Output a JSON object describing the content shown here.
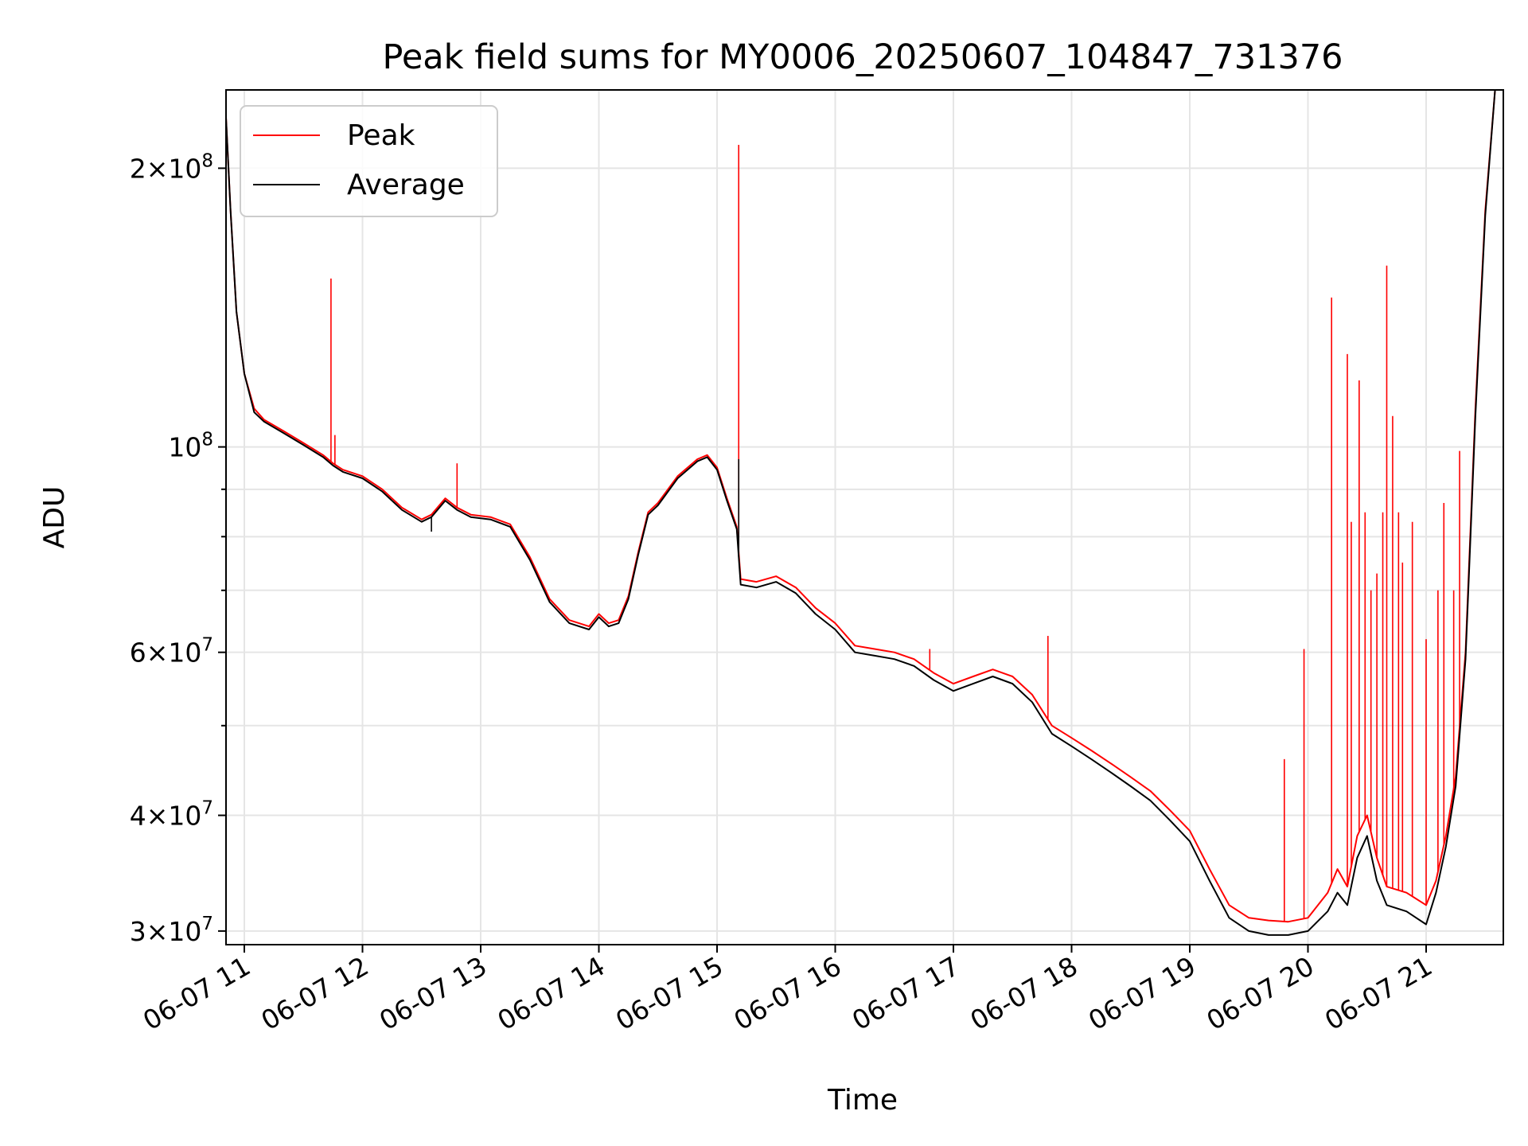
{
  "chart_data": {
    "type": "line",
    "title": "Peak field sums for MY0006_20250607_104847_731376",
    "xlabel": "Time",
    "ylabel": "ADU",
    "yscale": "log",
    "grid": true,
    "legend_position": "top-left",
    "x_tick_labels": [
      "06-07 11",
      "06-07 12",
      "06-07 13",
      "06-07 14",
      "06-07 15",
      "06-07 16",
      "06-07 17",
      "06-07 18",
      "06-07 19",
      "06-07 20",
      "06-07 21"
    ],
    "y_ticks": [
      {
        "value": 30000000,
        "mantissa": "3",
        "exp": "7"
      },
      {
        "value": 40000000,
        "mantissa": "4",
        "exp": "7"
      },
      {
        "value": 60000000,
        "mantissa": "6",
        "exp": "7"
      },
      {
        "value": 100000000,
        "mantissa": "",
        "exp": "8"
      },
      {
        "value": 200000000,
        "mantissa": "2",
        "exp": "8"
      }
    ],
    "x_range": [
      "06-07 10:50",
      "06-07 21:38"
    ],
    "y_range": [
      29000000,
      243000000
    ],
    "series": [
      {
        "name": "Peak",
        "color": "#ff0000",
        "points": [
          [
            "06-07 10:50",
            243000000
          ],
          [
            "06-07 10:53",
            180000000
          ],
          [
            "06-07 10:56",
            140000000
          ],
          [
            "06-07 11:00",
            120000000
          ],
          [
            "06-07 11:05",
            110000000
          ],
          [
            "06-07 11:10",
            107000000
          ],
          [
            "06-07 11:20",
            104000000
          ],
          [
            "06-07 11:30",
            101000000
          ],
          [
            "06-07 11:40",
            98000000
          ],
          [
            "06-07 11:45",
            96000000
          ],
          [
            "06-07 11:50",
            94500000
          ],
          [
            "06-07 12:00",
            93000000
          ],
          [
            "06-07 12:10",
            90000000
          ],
          [
            "06-07 12:20",
            86000000
          ],
          [
            "06-07 12:30",
            83500000
          ],
          [
            "06-07 12:35",
            84500000
          ],
          [
            "06-07 12:42",
            88000000
          ],
          [
            "06-07 12:48",
            86000000
          ],
          [
            "06-07 12:55",
            84500000
          ],
          [
            "06-07 13:05",
            84000000
          ],
          [
            "06-07 13:15",
            82500000
          ],
          [
            "06-07 13:25",
            76000000
          ],
          [
            "06-07 13:35",
            68500000
          ],
          [
            "06-07 13:45",
            65000000
          ],
          [
            "06-07 13:55",
            64000000
          ],
          [
            "06-07 14:00",
            66000000
          ],
          [
            "06-07 14:05",
            64500000
          ],
          [
            "06-07 14:10",
            65000000
          ],
          [
            "06-07 14:15",
            69000000
          ],
          [
            "06-07 14:20",
            77000000
          ],
          [
            "06-07 14:25",
            85000000
          ],
          [
            "06-07 14:30",
            87000000
          ],
          [
            "06-07 14:40",
            93000000
          ],
          [
            "06-07 14:50",
            97000000
          ],
          [
            "06-07 14:55",
            98000000
          ],
          [
            "06-07 15:00",
            95000000
          ],
          [
            "06-07 15:05",
            88000000
          ],
          [
            "06-07 15:10",
            82000000
          ],
          [
            "06-07 15:12",
            72000000
          ],
          [
            "06-07 15:20",
            71500000
          ],
          [
            "06-07 15:30",
            72500000
          ],
          [
            "06-07 15:40",
            70500000
          ],
          [
            "06-07 15:50",
            67000000
          ],
          [
            "06-07 16:00",
            64500000
          ],
          [
            "06-07 16:10",
            61000000
          ],
          [
            "06-07 16:20",
            60500000
          ],
          [
            "06-07 16:30",
            60000000
          ],
          [
            "06-07 16:40",
            59000000
          ],
          [
            "06-07 16:50",
            57000000
          ],
          [
            "06-07 17:00",
            55500000
          ],
          [
            "06-07 17:10",
            56500000
          ],
          [
            "06-07 17:20",
            57500000
          ],
          [
            "06-07 17:30",
            56500000
          ],
          [
            "06-07 17:40",
            54000000
          ],
          [
            "06-07 17:50",
            50000000
          ],
          [
            "06-07 18:00",
            48500000
          ],
          [
            "06-07 18:10",
            47000000
          ],
          [
            "06-07 18:20",
            45500000
          ],
          [
            "06-07 18:30",
            44000000
          ],
          [
            "06-07 18:40",
            42500000
          ],
          [
            "06-07 18:50",
            40500000
          ],
          [
            "06-07 19:00",
            38500000
          ],
          [
            "06-07 19:10",
            35000000
          ],
          [
            "06-07 19:20",
            32000000
          ],
          [
            "06-07 19:30",
            31000000
          ],
          [
            "06-07 19:40",
            30800000
          ],
          [
            "06-07 19:50",
            30700000
          ],
          [
            "06-07 20:00",
            31000000
          ],
          [
            "06-07 20:10",
            33000000
          ],
          [
            "06-07 20:15",
            35000000
          ],
          [
            "06-07 20:20",
            33500000
          ],
          [
            "06-07 20:25",
            38000000
          ],
          [
            "06-07 20:30",
            40000000
          ],
          [
            "06-07 20:35",
            36000000
          ],
          [
            "06-07 20:40",
            33500000
          ],
          [
            "06-07 20:50",
            33000000
          ],
          [
            "06-07 21:00",
            32000000
          ],
          [
            "06-07 21:05",
            34000000
          ],
          [
            "06-07 21:10",
            38000000
          ],
          [
            "06-07 21:15",
            44000000
          ],
          [
            "06-07 21:20",
            60000000
          ],
          [
            "06-07 21:25",
            110000000
          ],
          [
            "06-07 21:30",
            180000000
          ],
          [
            "06-07 21:35",
            243000000
          ]
        ],
        "spikes": [
          [
            "06-07 11:44",
            152000000
          ],
          [
            "06-07 11:46",
            103000000
          ],
          [
            "06-07 12:48",
            96000000
          ],
          [
            "06-07 15:11",
            212000000
          ],
          [
            "06-07 16:48",
            60500000
          ],
          [
            "06-07 17:48",
            62500000
          ],
          [
            "06-07 19:48",
            46000000
          ],
          [
            "06-07 19:58",
            60500000
          ],
          [
            "06-07 20:12",
            145000000
          ],
          [
            "06-07 20:20",
            126000000
          ],
          [
            "06-07 20:22",
            83000000
          ],
          [
            "06-07 20:26",
            118000000
          ],
          [
            "06-07 20:29",
            85000000
          ],
          [
            "06-07 20:32",
            70000000
          ],
          [
            "06-07 20:35",
            73000000
          ],
          [
            "06-07 20:38",
            85000000
          ],
          [
            "06-07 20:40",
            157000000
          ],
          [
            "06-07 20:43",
            108000000
          ],
          [
            "06-07 20:46",
            85000000
          ],
          [
            "06-07 20:48",
            75000000
          ],
          [
            "06-07 20:53",
            83000000
          ],
          [
            "06-07 21:00",
            62000000
          ],
          [
            "06-07 21:06",
            70000000
          ],
          [
            "06-07 21:09",
            87000000
          ],
          [
            "06-07 21:14",
            70000000
          ],
          [
            "06-07 21:17",
            99000000
          ]
        ]
      },
      {
        "name": "Average",
        "color": "#000000",
        "points": [
          [
            "06-07 10:50",
            243000000
          ],
          [
            "06-07 10:53",
            180000000
          ],
          [
            "06-07 10:56",
            140000000
          ],
          [
            "06-07 11:00",
            120000000
          ],
          [
            "06-07 11:05",
            109000000
          ],
          [
            "06-07 11:10",
            106500000
          ],
          [
            "06-07 11:20",
            103500000
          ],
          [
            "06-07 11:30",
            100500000
          ],
          [
            "06-07 11:40",
            97500000
          ],
          [
            "06-07 11:45",
            95500000
          ],
          [
            "06-07 11:50",
            94000000
          ],
          [
            "06-07 12:00",
            92500000
          ],
          [
            "06-07 12:10",
            89500000
          ],
          [
            "06-07 12:20",
            85500000
          ],
          [
            "06-07 12:30",
            83000000
          ],
          [
            "06-07 12:35",
            84000000
          ],
          [
            "06-07 12:42",
            87500000
          ],
          [
            "06-07 12:48",
            85500000
          ],
          [
            "06-07 12:55",
            84000000
          ],
          [
            "06-07 13:05",
            83500000
          ],
          [
            "06-07 13:15",
            82000000
          ],
          [
            "06-07 13:25",
            75500000
          ],
          [
            "06-07 13:35",
            68000000
          ],
          [
            "06-07 13:45",
            64500000
          ],
          [
            "06-07 13:55",
            63500000
          ],
          [
            "06-07 14:00",
            65500000
          ],
          [
            "06-07 14:05",
            64000000
          ],
          [
            "06-07 14:10",
            64500000
          ],
          [
            "06-07 14:15",
            68500000
          ],
          [
            "06-07 14:20",
            76500000
          ],
          [
            "06-07 14:25",
            84500000
          ],
          [
            "06-07 14:30",
            86500000
          ],
          [
            "06-07 14:40",
            92500000
          ],
          [
            "06-07 14:50",
            96500000
          ],
          [
            "06-07 14:55",
            97500000
          ],
          [
            "06-07 15:00",
            94500000
          ],
          [
            "06-07 15:05",
            87500000
          ],
          [
            "06-07 15:10",
            81500000
          ],
          [
            "06-07 15:12",
            71000000
          ],
          [
            "06-07 15:20",
            70500000
          ],
          [
            "06-07 15:30",
            71500000
          ],
          [
            "06-07 15:40",
            69500000
          ],
          [
            "06-07 15:50",
            66000000
          ],
          [
            "06-07 16:00",
            63500000
          ],
          [
            "06-07 16:10",
            60000000
          ],
          [
            "06-07 16:20",
            59500000
          ],
          [
            "06-07 16:30",
            59000000
          ],
          [
            "06-07 16:40",
            58000000
          ],
          [
            "06-07 16:50",
            56000000
          ],
          [
            "06-07 17:00",
            54500000
          ],
          [
            "06-07 17:10",
            55500000
          ],
          [
            "06-07 17:20",
            56500000
          ],
          [
            "06-07 17:30",
            55500000
          ],
          [
            "06-07 17:40",
            53000000
          ],
          [
            "06-07 17:50",
            49000000
          ],
          [
            "06-07 18:00",
            47500000
          ],
          [
            "06-07 18:10",
            46000000
          ],
          [
            "06-07 18:20",
            44500000
          ],
          [
            "06-07 18:30",
            43000000
          ],
          [
            "06-07 18:40",
            41500000
          ],
          [
            "06-07 18:50",
            39500000
          ],
          [
            "06-07 19:00",
            37500000
          ],
          [
            "06-07 19:10",
            34000000
          ],
          [
            "06-07 19:20",
            31000000
          ],
          [
            "06-07 19:30",
            30000000
          ],
          [
            "06-07 19:40",
            29700000
          ],
          [
            "06-07 19:50",
            29700000
          ],
          [
            "06-07 20:00",
            30000000
          ],
          [
            "06-07 20:10",
            31500000
          ],
          [
            "06-07 20:15",
            33000000
          ],
          [
            "06-07 20:20",
            32000000
          ],
          [
            "06-07 20:25",
            36000000
          ],
          [
            "06-07 20:30",
            38000000
          ],
          [
            "06-07 20:35",
            34000000
          ],
          [
            "06-07 20:40",
            32000000
          ],
          [
            "06-07 20:50",
            31500000
          ],
          [
            "06-07 21:00",
            30500000
          ],
          [
            "06-07 21:05",
            33000000
          ],
          [
            "06-07 21:10",
            37000000
          ],
          [
            "06-07 21:15",
            43000000
          ],
          [
            "06-07 21:20",
            59000000
          ],
          [
            "06-07 21:25",
            108000000
          ],
          [
            "06-07 21:30",
            178000000
          ],
          [
            "06-07 21:35",
            243000000
          ]
        ],
        "spikes": [
          [
            "06-07 12:35",
            81000000
          ],
          [
            "06-07 15:11",
            97000000
          ]
        ]
      }
    ]
  }
}
